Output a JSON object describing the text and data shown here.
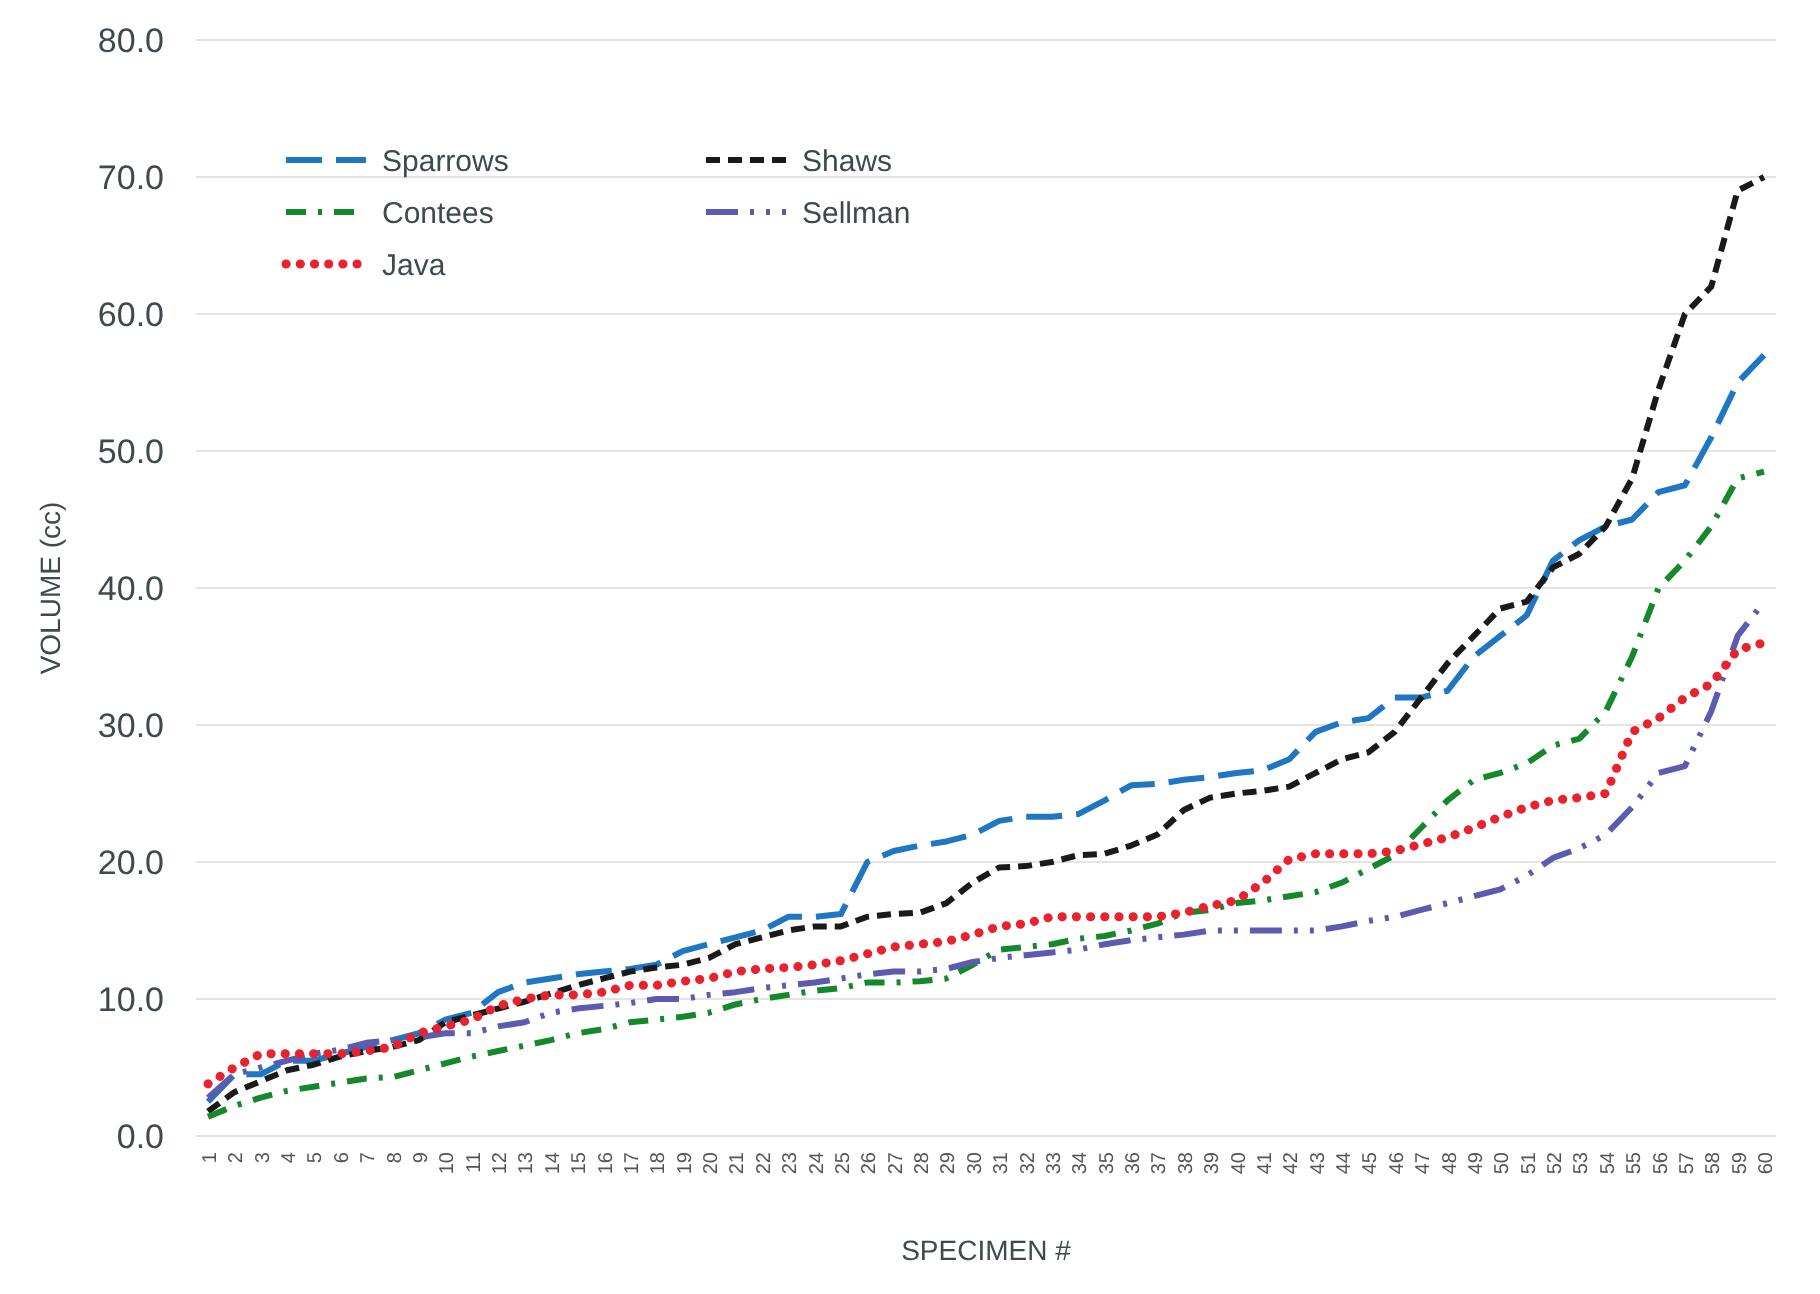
{
  "chart_data": {
    "type": "line",
    "xlabel": "SPECIMEN #",
    "ylabel": "VOLUME (cc)",
    "categories": [
      "1",
      "2",
      "3",
      "4",
      "5",
      "6",
      "7",
      "8",
      "9",
      "10",
      "11",
      "12",
      "13",
      "14",
      "15",
      "16",
      "17",
      "18",
      "19",
      "20",
      "21",
      "22",
      "23",
      "24",
      "25",
      "26",
      "27",
      "28",
      "29",
      "30",
      "31",
      "32",
      "33",
      "34",
      "35",
      "36",
      "37",
      "38",
      "39",
      "40",
      "41",
      "42",
      "43",
      "44",
      "45",
      "46",
      "47",
      "48",
      "49",
      "50",
      "51",
      "52",
      "53",
      "54",
      "55",
      "56",
      "57",
      "58",
      "59",
      "60"
    ],
    "ylim": [
      0,
      80
    ],
    "yticks": [
      {
        "value": 0,
        "label": "0.0"
      },
      {
        "value": 10,
        "label": "10.0"
      },
      {
        "value": 20,
        "label": "20.0"
      },
      {
        "value": 30,
        "label": "30.0"
      },
      {
        "value": 40,
        "label": "40.0"
      },
      {
        "value": 50,
        "label": "50.0"
      },
      {
        "value": 60,
        "label": "60.0"
      },
      {
        "value": 70,
        "label": "70.0"
      },
      {
        "value": 80,
        "label": "80.0"
      }
    ],
    "grid": "y",
    "legend": "top left",
    "marker": "none",
    "series": [
      {
        "name": "Sparrows",
        "color": "#1f77c4",
        "line_style": "dashed",
        "values": [
          2.5,
          4.5,
          4.5,
          5.5,
          5.5,
          6,
          6.5,
          7,
          7.5,
          8.5,
          9,
          10.5,
          11.2,
          11.5,
          11.8,
          12,
          12.2,
          12.5,
          13.5,
          14,
          14.5,
          15,
          16,
          16,
          16.2,
          20,
          20.8,
          21.2,
          21.5,
          22,
          23,
          23.3,
          23.3,
          23.5,
          24.5,
          25.6,
          25.7,
          26,
          26.2,
          26.5,
          26.7,
          27.5,
          29.5,
          30.2,
          30.5,
          32,
          32,
          32.5,
          35,
          36.5,
          38,
          42,
          43.5,
          44.5,
          45,
          47,
          47.5,
          51,
          55,
          57
        ]
      },
      {
        "name": "Shaws",
        "color": "#1a1a1a",
        "line_style": "dashed",
        "values": [
          1.8,
          3.2,
          4,
          4.8,
          5.2,
          5.8,
          6.2,
          6.5,
          7,
          8.3,
          8.8,
          9.3,
          9.8,
          10.4,
          11,
          11.5,
          12,
          12.3,
          12.5,
          13,
          14,
          14.5,
          15,
          15.3,
          15.3,
          16,
          16.2,
          16.3,
          17,
          18.5,
          19.6,
          19.7,
          20,
          20.5,
          20.6,
          21.2,
          22,
          23.8,
          24.7,
          25,
          25.2,
          25.5,
          26.5,
          27.5,
          28,
          29.5,
          32,
          34.5,
          36.5,
          38.5,
          39,
          41.5,
          42.5,
          44.5,
          48,
          54.5,
          60,
          62,
          69,
          70
        ]
      },
      {
        "name": "Contees",
        "color": "#14892c",
        "line_style": "dashed",
        "values": [
          1.4,
          2.2,
          2.8,
          3.3,
          3.6,
          3.9,
          4.2,
          4.3,
          4.8,
          5.3,
          5.8,
          6.2,
          6.6,
          7,
          7.5,
          7.8,
          8.3,
          8.5,
          8.7,
          9,
          9.6,
          10,
          10.3,
          10.6,
          10.8,
          11.2,
          11.2,
          11.3,
          11.5,
          12.5,
          13.6,
          13.8,
          14,
          14.4,
          14.6,
          15,
          15.5,
          16.3,
          16.5,
          17,
          17.2,
          17.5,
          17.8,
          18.5,
          19.5,
          20.5,
          22.5,
          24.5,
          26,
          26.5,
          27.2,
          28.5,
          29,
          31,
          35,
          40,
          42,
          44.5,
          48,
          48.5
        ]
      },
      {
        "name": "Sellman",
        "color": "#5b5bb0",
        "line_style": "dashed",
        "values": [
          2.8,
          4.5,
          5,
          5.5,
          6,
          6.3,
          6.8,
          7,
          7.2,
          7.5,
          7.5,
          8,
          8.3,
          9,
          9.3,
          9.5,
          9.7,
          10,
          10,
          10.3,
          10.5,
          10.8,
          11,
          11.2,
          11.5,
          11.8,
          12,
          12,
          12.2,
          12.7,
          13,
          13.2,
          13.4,
          13.6,
          14,
          14.3,
          14.5,
          14.7,
          15,
          15,
          15,
          15,
          15,
          15.3,
          15.7,
          16,
          16.5,
          17,
          17.5,
          18,
          19,
          20.3,
          21,
          22,
          24,
          26.5,
          27,
          31,
          36.5,
          39
        ]
      },
      {
        "name": "Java",
        "color": "#e8222e",
        "line_style": "dotted",
        "values": [
          3.8,
          5,
          6,
          6,
          6,
          6,
          6.2,
          6.5,
          7.5,
          8,
          8.5,
          9.5,
          10,
          10.3,
          10.3,
          10.5,
          11,
          11,
          11.3,
          11.5,
          12,
          12.2,
          12.3,
          12.5,
          12.8,
          13.3,
          13.8,
          14,
          14.2,
          14.7,
          15.3,
          15.5,
          16,
          16,
          16,
          16,
          16,
          16.3,
          16.8,
          17.2,
          18.5,
          20.2,
          20.6,
          20.6,
          20.6,
          20.8,
          21.3,
          21.8,
          22.5,
          23.3,
          24,
          24.5,
          24.7,
          25,
          29.5,
          30.5,
          32,
          33,
          35.5,
          36
        ]
      }
    ]
  }
}
